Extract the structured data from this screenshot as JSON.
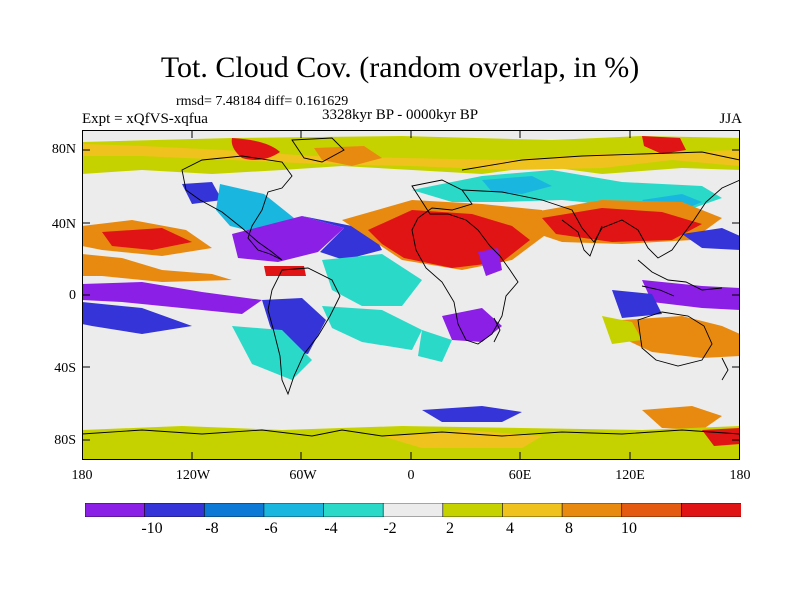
{
  "title": "Tot. Cloud Cov. (random overlap, in %)",
  "stats": "rmsd= 7.48184 diff= 0.161629",
  "experiment": "Expt = xQfVS-xqfua",
  "period": "3328kyr BP - 0000kyr BP",
  "season": "JJA",
  "lat_labels": [
    "80N",
    "40N",
    "0",
    "40S",
    "80S"
  ],
  "lon_labels": [
    "180",
    "120W",
    "60W",
    "0",
    "60E",
    "120E",
    "180"
  ],
  "colorbar": {
    "labels": [
      "-10",
      "-8",
      "-6",
      "-4",
      "-2",
      "2",
      "4",
      "8",
      "10"
    ],
    "colors": [
      "#8b1fe6",
      "#3434d8",
      "#0d79d6",
      "#19b7e0",
      "#2bd9c9",
      "#ececec",
      "#c6d200",
      "#f0c21e",
      "#e98a10",
      "#e45a10",
      "#e01414"
    ]
  },
  "map": {
    "extent": {
      "lon": [
        -180,
        180
      ],
      "lat": [
        -90,
        90
      ]
    },
    "background_color": "#ececec",
    "coastline_color": "#000000"
  }
}
